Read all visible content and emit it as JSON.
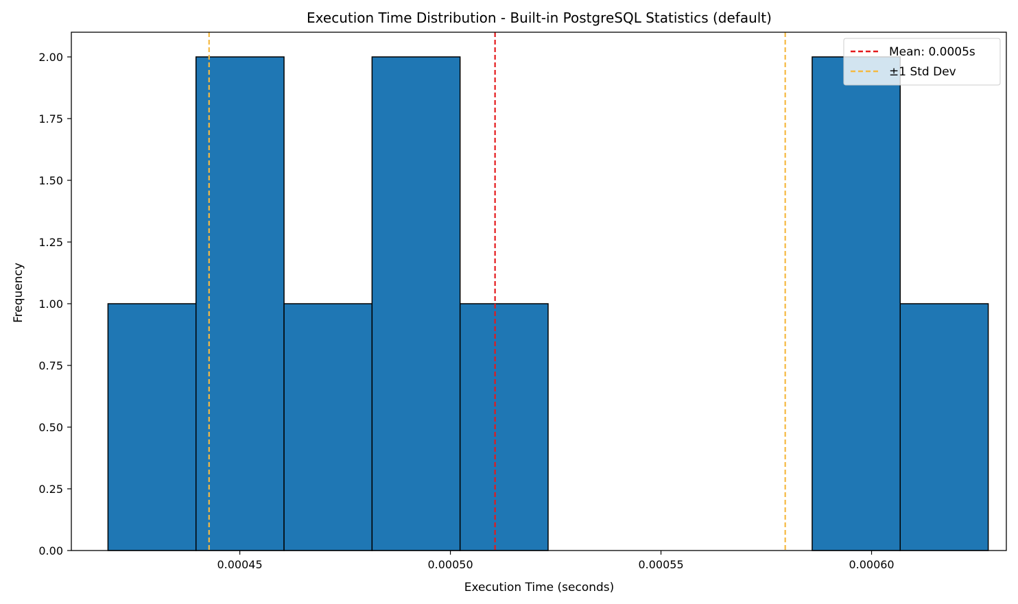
{
  "chart_data": {
    "type": "bar",
    "title": "Execution Time Distribution - Built-in PostgreSQL Statistics (default)",
    "xlabel": "Execution Time (seconds)",
    "ylabel": "Frequency",
    "xlim": [
      0.00041,
      0.000632
    ],
    "ylim": [
      0,
      2.1
    ],
    "grid": false,
    "legend_position": "top-right",
    "bin_edges": [
      0.0004187,
      0.0004396,
      0.0004605,
      0.0004814,
      0.0005023,
      0.0005232,
      0.0005441,
      0.000565,
      0.0005859,
      0.0006068,
      0.0006277
    ],
    "counts": [
      1,
      2,
      1,
      2,
      1,
      0,
      0,
      0,
      2,
      1
    ],
    "bar_color": "#1f77b4",
    "bar_edge_color": "#000000",
    "x_ticks": [
      {
        "value": 0.00045,
        "label": "0.00045"
      },
      {
        "value": 0.0005,
        "label": "0.00050"
      },
      {
        "value": 0.00055,
        "label": "0.00055"
      },
      {
        "value": 0.0006,
        "label": "0.00060"
      }
    ],
    "y_ticks": [
      {
        "value": 0,
        "label": "0.00"
      },
      {
        "value": 0.25,
        "label": "0.25"
      },
      {
        "value": 0.5,
        "label": "0.50"
      },
      {
        "value": 0.75,
        "label": "0.75"
      },
      {
        "value": 1.0,
        "label": "1.00"
      },
      {
        "value": 1.25,
        "label": "1.25"
      },
      {
        "value": 1.5,
        "label": "1.50"
      },
      {
        "value": 1.75,
        "label": "1.75"
      },
      {
        "value": 2.0,
        "label": "2.00"
      }
    ],
    "reference_lines": [
      {
        "name": "mean-line",
        "value": 0.0005106,
        "color": "#e41a1c",
        "legend": "Mean: 0.0005s"
      },
      {
        "name": "std-dev-lower-line",
        "value": 0.0004427,
        "color": "#f5b942",
        "legend": "±1 Std Dev"
      },
      {
        "name": "std-dev-upper-line",
        "value": 0.0005795,
        "color": "#f5b942",
        "legend": ""
      }
    ],
    "legend": [
      {
        "label": "Mean: 0.0005s",
        "color": "#e41a1c"
      },
      {
        "label": "±1 Std Dev",
        "color": "#f5b942"
      }
    ]
  }
}
